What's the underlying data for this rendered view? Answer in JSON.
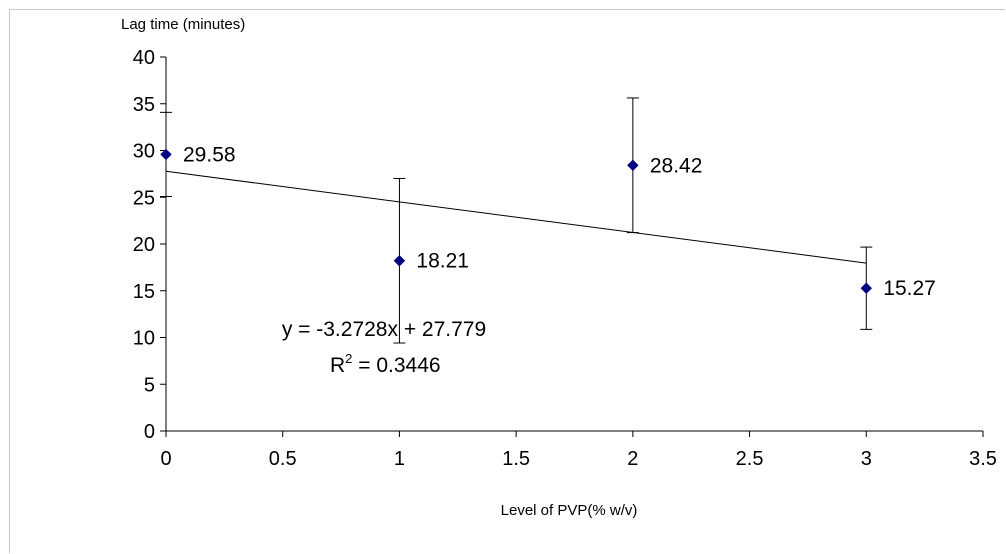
{
  "chart_data": {
    "type": "scatter",
    "ylabel": "Lag time (minutes)",
    "xlabel": "Level of PVP(% w/v)",
    "xlim": [
      0,
      3.5
    ],
    "ylim": [
      0,
      40
    ],
    "x_ticks": [
      "0",
      "0.5",
      "1",
      "1.5",
      "2",
      "2.5",
      "3",
      "3.5"
    ],
    "y_ticks": [
      "0",
      "5",
      "10",
      "15",
      "20",
      "25",
      "30",
      "35",
      "40"
    ],
    "grid": false,
    "marker_color": "#000080",
    "points": [
      {
        "x": 0,
        "y": 29.58,
        "label": "29.58",
        "err": 4.5
      },
      {
        "x": 1,
        "y": 18.21,
        "label": "18.21",
        "err": 8.8
      },
      {
        "x": 2,
        "y": 28.42,
        "label": "28.42",
        "err": 7.2
      },
      {
        "x": 3,
        "y": 15.27,
        "label": "15.27",
        "err": 4.4
      }
    ],
    "trendline": {
      "slope": -3.2728,
      "intercept": 27.779,
      "x_range": [
        0,
        3
      ]
    },
    "equation": "y = -3.2728x + 27.779",
    "r2_prefix": "R",
    "r2_sup": "2",
    "r2_value": " = 0.3446"
  }
}
